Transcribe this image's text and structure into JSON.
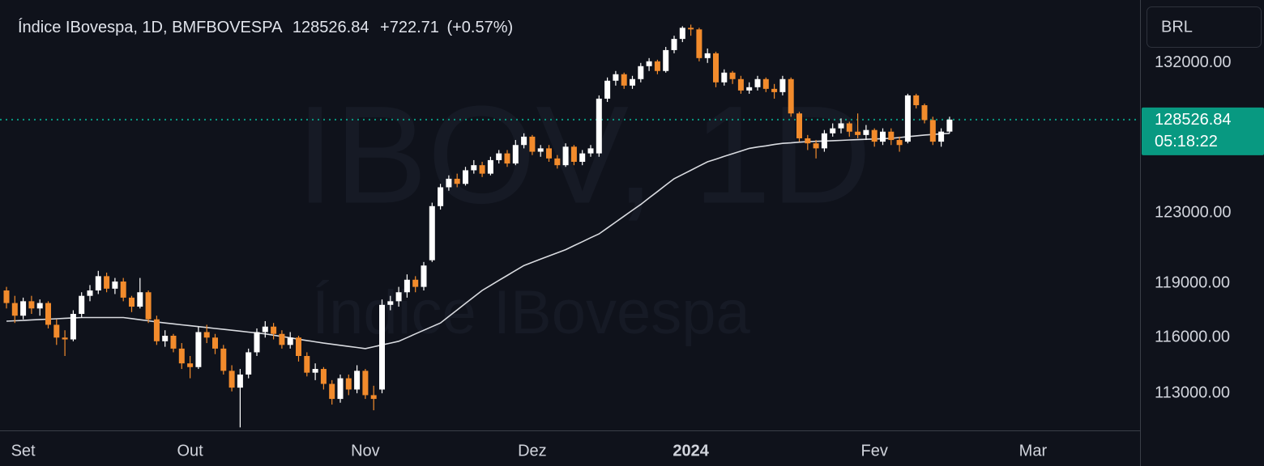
{
  "chart_data": {
    "type": "candlestick",
    "title": "Índice IBovespa, 1D, BMFBOVESPA",
    "last_price": 128526.84,
    "change": {
      "value": 722.71,
      "label": "+722.71"
    },
    "change_pct": {
      "value": 0.57,
      "label": "(+0.57%)"
    },
    "watermark": "IBOV, 1D",
    "watermark_subtitle": "Índice IBovespa",
    "currency": "BRL",
    "countdown": "05:18:22",
    "log_scale": true,
    "grid": false,
    "up_color": "#ffffff",
    "down_color": "#f28b2c",
    "last_price_color": "#089981",
    "ylim": [
      111043,
      135967
    ],
    "yticks": [
      {
        "value": 132000,
        "label": "132000.00"
      },
      {
        "value": 123000,
        "label": "123000.00"
      },
      {
        "value": 119000,
        "label": "119000.00"
      },
      {
        "value": 116000,
        "label": "116000.00"
      },
      {
        "value": 113000,
        "label": "113000.00"
      }
    ],
    "categories": [
      null,
      null,
      "Set",
      null,
      null,
      null,
      null,
      null,
      null,
      null,
      null,
      null,
      null,
      null,
      null,
      null,
      null,
      null,
      null,
      null,
      null,
      null,
      "Out",
      null,
      null,
      null,
      null,
      null,
      null,
      null,
      null,
      null,
      null,
      null,
      null,
      null,
      null,
      null,
      null,
      null,
      null,
      null,
      null,
      "Nov",
      null,
      null,
      null,
      null,
      null,
      null,
      null,
      null,
      null,
      null,
      null,
      null,
      null,
      null,
      null,
      null,
      null,
      null,
      null,
      "Dez",
      null,
      null,
      null,
      null,
      null,
      null,
      null,
      null,
      null,
      null,
      null,
      null,
      null,
      null,
      null,
      null,
      null,
      null,
      "2024",
      null,
      null,
      null,
      null,
      null,
      null,
      null,
      null,
      null,
      null,
      null,
      null,
      null,
      null,
      null,
      null,
      null,
      null,
      null,
      null,
      null,
      "Fev",
      null,
      null,
      null,
      null,
      null,
      null,
      null,
      null,
      null,
      null,
      null,
      null,
      null,
      null,
      null,
      null,
      null,
      null,
      "Mar",
      null,
      null,
      null,
      null,
      null,
      null,
      null,
      null,
      null,
      null,
      null,
      null
    ],
    "open": [
      118600,
      117900,
      117200,
      118000,
      117600,
      117900,
      116700,
      116000,
      115900,
      117300,
      118300,
      118600,
      119400,
      118700,
      119100,
      118200,
      117700,
      118500,
      117000,
      115800,
      116100,
      115400,
      114600,
      114400,
      116300,
      116000,
      115400,
      114200,
      113300,
      114000,
      115200,
      116300,
      116600,
      116200,
      115600,
      116000,
      115000,
      114100,
      114300,
      113500,
      112700,
      113800,
      113200,
      114200,
      112900,
      113200,
      117800,
      118000,
      118500,
      119200,
      118800,
      120300,
      123400,
      124500,
      125000,
      124700,
      125500,
      125800,
      125300,
      126100,
      126500,
      125900,
      127000,
      127500,
      126600,
      126800,
      126200,
      125800,
      126900,
      126000,
      126500,
      126500,
      129800,
      130900,
      131300,
      130600,
      131000,
      131800,
      132100,
      131500,
      132800,
      133500,
      134200,
      134100,
      132300,
      132600,
      130800,
      131400,
      131000,
      130300,
      130500,
      131000,
      130400,
      130200,
      131000,
      128900,
      127400,
      127100,
      126800,
      127700,
      128000,
      128300,
      127800,
      127600,
      127900,
      127200,
      127800,
      127300,
      127200,
      130000,
      129400,
      128500,
      127200,
      127804.13,
      null,
      null,
      null,
      null,
      null,
      null,
      null,
      null,
      null,
      null,
      null,
      null,
      null,
      null,
      null,
      null,
      null,
      null,
      null,
      null,
      null,
      null
    ],
    "high": [
      118800,
      118300,
      118200,
      118300,
      118100,
      118000,
      117000,
      116400,
      117500,
      118500,
      118900,
      119700,
      119600,
      119300,
      119300,
      118300,
      119300,
      118600,
      117200,
      116400,
      116200,
      115700,
      115000,
      116600,
      116700,
      116200,
      115600,
      114500,
      114300,
      115400,
      116500,
      116900,
      116800,
      116400,
      116300,
      116100,
      115200,
      114600,
      114400,
      113700,
      114000,
      114000,
      114500,
      114300,
      113400,
      118100,
      118300,
      118800,
      119500,
      119400,
      120200,
      123600,
      124700,
      125200,
      125300,
      125700,
      126100,
      126000,
      126300,
      126700,
      126700,
      127300,
      127700,
      127600,
      127000,
      127000,
      126400,
      127100,
      127000,
      126700,
      127000,
      130000,
      131100,
      131500,
      131400,
      131200,
      132000,
      132300,
      132200,
      133000,
      133700,
      134300,
      134400,
      134200,
      132900,
      132700,
      131600,
      131500,
      131200,
      130800,
      131200,
      131100,
      130700,
      131200,
      131100,
      129000,
      127600,
      127300,
      127900,
      128300,
      128600,
      128400,
      128900,
      128200,
      128000,
      128000,
      128000,
      127500,
      130100,
      130100,
      129500,
      128700,
      128000,
      128700,
      null,
      null,
      null,
      null,
      null,
      null,
      null,
      null,
      null,
      null,
      null,
      null,
      null,
      null,
      null,
      null,
      null,
      null,
      null,
      null,
      null,
      null
    ],
    "low": [
      117600,
      116800,
      117000,
      117300,
      117200,
      116500,
      115600,
      115000,
      115800,
      117100,
      118000,
      118400,
      118500,
      118400,
      118000,
      117400,
      117600,
      116800,
      115600,
      115500,
      115200,
      114300,
      113800,
      114300,
      115700,
      115100,
      114000,
      113100,
      111200,
      113800,
      115000,
      116000,
      115900,
      115400,
      115400,
      114700,
      113900,
      113700,
      113200,
      112400,
      112500,
      112900,
      113000,
      112700,
      112100,
      113000,
      117500,
      117700,
      118200,
      118500,
      118600,
      120200,
      123200,
      124300,
      124500,
      124600,
      125300,
      125100,
      125200,
      125900,
      125700,
      125800,
      126800,
      126400,
      126300,
      126000,
      125600,
      125700,
      125800,
      125800,
      126300,
      126300,
      129600,
      130600,
      130400,
      130400,
      130800,
      131500,
      131300,
      131400,
      132600,
      133300,
      133700,
      132100,
      132000,
      130500,
      130600,
      130700,
      130100,
      130100,
      130300,
      130200,
      129800,
      130000,
      128700,
      127200,
      126700,
      126200,
      126600,
      127500,
      127700,
      127500,
      127400,
      127300,
      126900,
      127000,
      127000,
      126600,
      127100,
      129200,
      128300,
      127000,
      126900,
      127700,
      null,
      null,
      null,
      null,
      null,
      null,
      null,
      null,
      null,
      null,
      null,
      null,
      null,
      null,
      null,
      null,
      null,
      null,
      null,
      null,
      null,
      null
    ],
    "close": [
      117900,
      117200,
      118000,
      117600,
      117900,
      116700,
      116000,
      115900,
      117300,
      118300,
      118600,
      119400,
      118700,
      119100,
      118200,
      117700,
      118500,
      117000,
      115800,
      116100,
      115400,
      114600,
      114400,
      116300,
      116000,
      115400,
      114200,
      113300,
      114000,
      115200,
      116300,
      116600,
      116200,
      115600,
      116000,
      115000,
      114100,
      114300,
      113500,
      112700,
      113800,
      113200,
      114200,
      112900,
      112700,
      117800,
      118000,
      118500,
      119200,
      118800,
      120000,
      123400,
      124500,
      125000,
      124700,
      125500,
      125800,
      125300,
      126100,
      126500,
      125900,
      127000,
      127500,
      126600,
      126800,
      126200,
      125800,
      126900,
      126000,
      126500,
      126800,
      129800,
      130900,
      131300,
      130600,
      131000,
      131800,
      132100,
      131500,
      132800,
      133500,
      134200,
      134100,
      132300,
      132600,
      130800,
      131400,
      131000,
      130300,
      130500,
      131000,
      130400,
      130200,
      131000,
      128900,
      127400,
      127100,
      126800,
      127700,
      128000,
      128300,
      127800,
      127600,
      127900,
      127200,
      127800,
      127300,
      127000,
      130000,
      129400,
      128500,
      127200,
      127804.13,
      128526.84,
      null,
      null,
      null,
      null,
      null,
      null,
      null,
      null,
      null,
      null,
      null,
      null,
      null,
      null,
      null,
      null,
      null,
      null,
      null,
      null,
      null,
      null
    ],
    "ma": {
      "color": "#d9dbe0",
      "values": [
        116900,
        116920,
        116940,
        116970,
        116990,
        117010,
        117030,
        117060,
        117080,
        117100,
        117100,
        117100,
        117100,
        117100,
        117100,
        117040,
        116980,
        116920,
        116860,
        116800,
        116750,
        116700,
        116650,
        116600,
        116550,
        116500,
        116450,
        116400,
        116350,
        116300,
        116250,
        116200,
        116130,
        116060,
        115990,
        115910,
        115840,
        115770,
        115700,
        115640,
        115580,
        115520,
        115460,
        115400,
        115500,
        115600,
        115700,
        115800,
        116000,
        116200,
        116400,
        116600,
        116800,
        117160,
        117520,
        117880,
        118240,
        118600,
        118880,
        119160,
        119440,
        119720,
        120000,
        120180,
        120360,
        120540,
        120720,
        120900,
        121130,
        121350,
        121580,
        121800,
        122140,
        122480,
        122820,
        123160,
        123500,
        123880,
        124250,
        124630,
        125000,
        125250,
        125500,
        125750,
        126000,
        126160,
        126320,
        126480,
        126640,
        126800,
        126880,
        126950,
        127030,
        127100,
        127130,
        127170,
        127200,
        127220,
        127240,
        127260,
        127280,
        127300,
        127320,
        127340,
        127360,
        127380,
        127400,
        127450,
        127500,
        127550,
        127600,
        127630,
        127670,
        127700,
        null,
        null,
        null,
        null,
        null,
        null,
        null,
        null,
        null,
        null,
        null,
        null,
        null,
        null,
        null,
        null,
        null,
        null,
        null,
        null,
        null,
        null
      ]
    }
  }
}
